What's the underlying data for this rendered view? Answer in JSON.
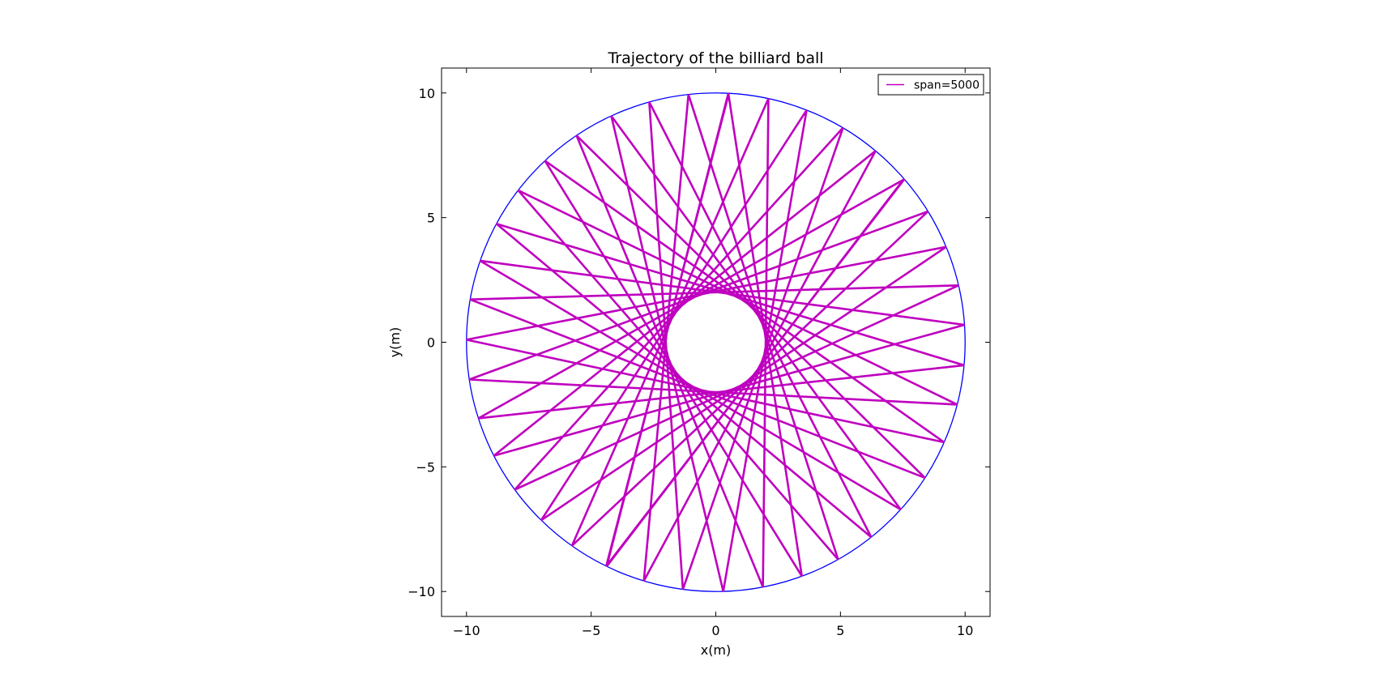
{
  "chart_data": {
    "type": "line",
    "title": "Trajectory of the billiard ball",
    "xlabel": "x(m)",
    "ylabel": "y(m)",
    "xlim": [
      -11,
      11
    ],
    "ylim": [
      -11,
      11
    ],
    "xticks": [
      -10,
      -5,
      0,
      5,
      10
    ],
    "yticks": [
      -10,
      -5,
      0,
      5,
      10
    ],
    "tick_labels_x": [
      "−10",
      "−5",
      "0",
      "5",
      "10"
    ],
    "tick_labels_y": [
      "−10",
      "−5",
      "0",
      "5",
      "10"
    ],
    "grid": false,
    "legend_position": "top-right",
    "series": [
      {
        "name": "span=5000",
        "color": "#bf00bf",
        "kind": "billiard-trajectory",
        "boundary_radius": 10,
        "caustic_radius": 2,
        "start_angle_deg": 87,
        "bounces": 41
      },
      {
        "name": "",
        "color": "#0000ff",
        "kind": "circle-boundary",
        "center": [
          0,
          0
        ],
        "radius": 10
      }
    ]
  }
}
